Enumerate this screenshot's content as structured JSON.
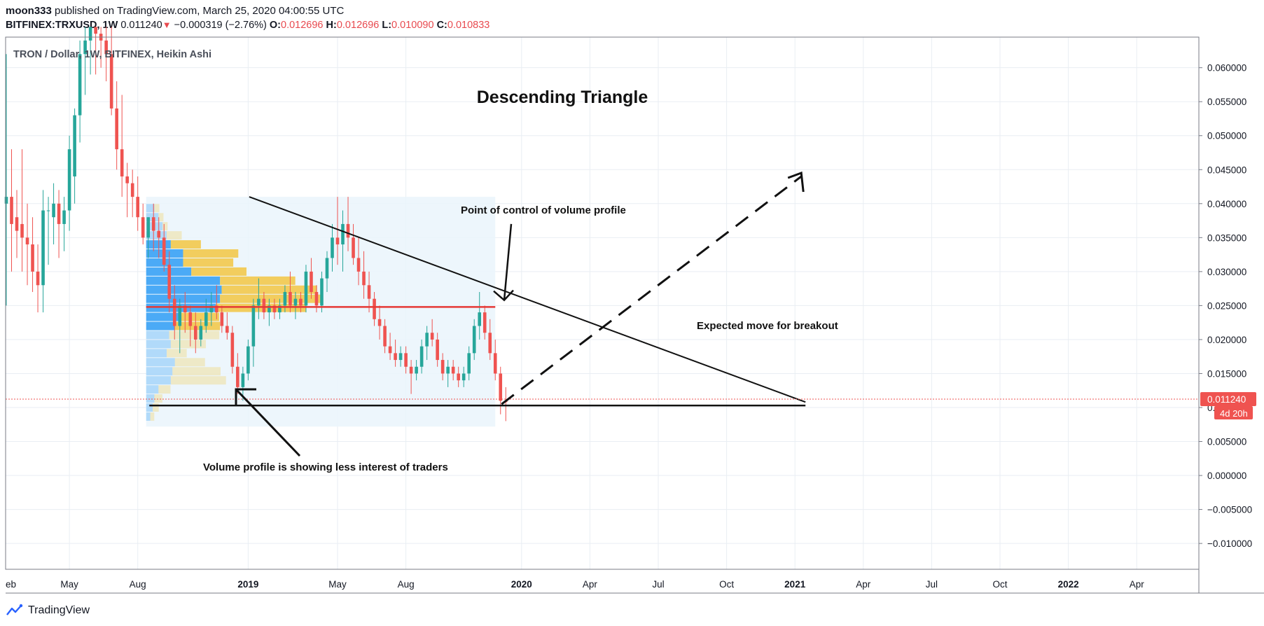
{
  "header": {
    "author": "moon333",
    "published": " published on TradingView.com, March 25, 2020 04:00:55 UTC",
    "symbol": "BITFINEX:TRXUSD, 1W",
    "last": "0.011240",
    "change": "−0.000319 (−2.76%)",
    "o_label": "O:",
    "o_value": "0.012696",
    "h_label": "H:",
    "h_value": "0.012696",
    "l_label": "L:",
    "l_value": "0.010090",
    "c_label": "C:",
    "c_value": "0.010833"
  },
  "branding": {
    "logo_text": "TradingView"
  },
  "colors": {
    "up": "#26a69a",
    "down": "#ef5350",
    "grid": "#e9eef3",
    "vp_up": "#42a5f5",
    "vp_down": "#f2c94c",
    "vp_area": "#eaf5fb",
    "poc": "#e53935",
    "price_line": "#ef5350"
  },
  "chart_data": {
    "type": "candlestick",
    "title": "TRON / Dollar, 1W, BITFINEX, Heikin Ashi",
    "annotations": {
      "headline": "Descending Triangle",
      "poc_label": "Point of control of volume profile",
      "breakout_label": "Expected move for breakout",
      "vp_label": "Volume profile is showing less interest of traders"
    },
    "y_ticks": [
      "0.060000",
      "0.055000",
      "0.050000",
      "0.045000",
      "0.040000",
      "0.035000",
      "0.030000",
      "0.025000",
      "0.020000",
      "0.015000",
      "0.010000",
      "0.005000",
      "0.000000",
      "−0.005000",
      "−0.010000"
    ],
    "y_values": [
      0.06,
      0.055,
      0.05,
      0.045,
      0.04,
      0.035,
      0.03,
      0.025,
      0.02,
      0.015,
      0.01,
      0.005,
      0,
      -0.005,
      -0.01
    ],
    "ylim": [
      -0.0138,
      0.0645
    ],
    "x_ticks": [
      {
        "label": "eb",
        "w": 0
      },
      {
        "label": "May",
        "w": 12
      },
      {
        "label": "Aug",
        "w": 25
      },
      {
        "label": "2019",
        "w": 46
      },
      {
        "label": "May",
        "w": 63
      },
      {
        "label": "Aug",
        "w": 76
      },
      {
        "label": "2020",
        "w": 98
      },
      {
        "label": "Apr",
        "w": 111
      },
      {
        "label": "Jul",
        "w": 124
      },
      {
        "label": "Oct",
        "w": 137
      },
      {
        "label": "2021",
        "w": 150
      },
      {
        "label": "Apr",
        "w": 163
      },
      {
        "label": "Jul",
        "w": 176
      },
      {
        "label": "Oct",
        "w": 189
      },
      {
        "label": "2022",
        "w": 202
      },
      {
        "label": "Apr",
        "w": 215
      }
    ],
    "last_price": "0.011240",
    "last_price_value": 0.01124,
    "countdown": "4d 20h",
    "candles": [
      [
        0.04,
        0.062,
        0.025,
        0.041
      ],
      [
        0.041,
        0.048,
        0.03,
        0.037
      ],
      [
        0.038,
        0.042,
        0.032,
        0.036
      ],
      [
        0.037,
        0.048,
        0.03,
        0.035
      ],
      [
        0.035,
        0.04,
        0.028,
        0.034
      ],
      [
        0.034,
        0.038,
        0.027,
        0.03
      ],
      [
        0.03,
        0.034,
        0.024,
        0.028
      ],
      [
        0.028,
        0.042,
        0.024,
        0.039
      ],
      [
        0.039,
        0.041,
        0.031,
        0.039
      ],
      [
        0.038,
        0.043,
        0.034,
        0.04
      ],
      [
        0.04,
        0.042,
        0.032,
        0.037
      ],
      [
        0.037,
        0.041,
        0.033,
        0.039
      ],
      [
        0.039,
        0.05,
        0.036,
        0.048
      ],
      [
        0.044,
        0.054,
        0.04,
        0.053
      ],
      [
        0.053,
        0.064,
        0.049,
        0.062
      ],
      [
        0.062,
        0.07,
        0.056,
        0.064
      ],
      [
        0.064,
        0.07,
        0.059,
        0.066
      ],
      [
        0.066,
        0.07,
        0.059,
        0.065
      ],
      [
        0.065,
        0.068,
        0.06,
        0.064
      ],
      [
        0.064,
        0.068,
        0.058,
        0.062
      ],
      [
        0.062,
        0.066,
        0.053,
        0.054
      ],
      [
        0.054,
        0.058,
        0.045,
        0.048
      ],
      [
        0.048,
        0.056,
        0.041,
        0.044
      ],
      [
        0.044,
        0.046,
        0.038,
        0.043
      ],
      [
        0.043,
        0.045,
        0.038,
        0.041
      ],
      [
        0.041,
        0.044,
        0.036,
        0.038
      ],
      [
        0.038,
        0.04,
        0.034,
        0.035
      ],
      [
        0.035,
        0.038,
        0.032,
        0.038
      ],
      [
        0.038,
        0.04,
        0.033,
        0.036
      ],
      [
        0.036,
        0.038,
        0.032,
        0.035
      ],
      [
        0.035,
        0.037,
        0.03,
        0.031
      ],
      [
        0.031,
        0.033,
        0.024,
        0.026
      ],
      [
        0.026,
        0.028,
        0.02,
        0.022
      ],
      [
        0.022,
        0.026,
        0.018,
        0.025
      ],
      [
        0.025,
        0.027,
        0.021,
        0.024
      ],
      [
        0.024,
        0.025,
        0.019,
        0.022
      ],
      [
        0.022,
        0.024,
        0.018,
        0.02
      ],
      [
        0.02,
        0.023,
        0.019,
        0.022
      ],
      [
        0.022,
        0.026,
        0.021,
        0.024
      ],
      [
        0.024,
        0.027,
        0.022,
        0.025
      ],
      [
        0.025,
        0.028,
        0.023,
        0.024
      ],
      [
        0.024,
        0.025,
        0.021,
        0.022
      ],
      [
        0.022,
        0.024,
        0.02,
        0.021
      ],
      [
        0.021,
        0.022,
        0.015,
        0.016
      ],
      [
        0.016,
        0.018,
        0.012,
        0.013
      ],
      [
        0.013,
        0.016,
        0.011,
        0.015
      ],
      [
        0.015,
        0.02,
        0.014,
        0.019
      ],
      [
        0.019,
        0.026,
        0.016,
        0.025
      ],
      [
        0.025,
        0.029,
        0.023,
        0.026
      ],
      [
        0.026,
        0.027,
        0.023,
        0.024
      ],
      [
        0.024,
        0.026,
        0.022,
        0.025
      ],
      [
        0.025,
        0.026,
        0.023,
        0.024
      ],
      [
        0.024,
        0.026,
        0.023,
        0.025
      ],
      [
        0.025,
        0.028,
        0.024,
        0.027
      ],
      [
        0.027,
        0.03,
        0.024,
        0.025
      ],
      [
        0.025,
        0.027,
        0.023,
        0.026
      ],
      [
        0.026,
        0.027,
        0.024,
        0.025
      ],
      [
        0.025,
        0.031,
        0.024,
        0.03
      ],
      [
        0.03,
        0.032,
        0.026,
        0.027
      ],
      [
        0.027,
        0.028,
        0.024,
        0.025
      ],
      [
        0.025,
        0.03,
        0.024,
        0.029
      ],
      [
        0.029,
        0.033,
        0.027,
        0.032
      ],
      [
        0.032,
        0.037,
        0.03,
        0.035
      ],
      [
        0.035,
        0.041,
        0.031,
        0.034
      ],
      [
        0.034,
        0.039,
        0.03,
        0.037
      ],
      [
        0.037,
        0.041,
        0.033,
        0.035
      ],
      [
        0.035,
        0.037,
        0.031,
        0.032
      ],
      [
        0.032,
        0.035,
        0.028,
        0.03
      ],
      [
        0.03,
        0.033,
        0.026,
        0.028
      ],
      [
        0.028,
        0.03,
        0.024,
        0.026
      ],
      [
        0.026,
        0.027,
        0.022,
        0.023
      ],
      [
        0.023,
        0.025,
        0.02,
        0.022
      ],
      [
        0.022,
        0.023,
        0.018,
        0.019
      ],
      [
        0.019,
        0.021,
        0.017,
        0.018
      ],
      [
        0.018,
        0.02,
        0.016,
        0.017
      ],
      [
        0.017,
        0.019,
        0.016,
        0.018
      ],
      [
        0.018,
        0.019,
        0.015,
        0.016
      ],
      [
        0.016,
        0.017,
        0.012,
        0.015
      ],
      [
        0.015,
        0.017,
        0.014,
        0.016
      ],
      [
        0.016,
        0.02,
        0.015,
        0.019
      ],
      [
        0.019,
        0.022,
        0.017,
        0.021
      ],
      [
        0.021,
        0.023,
        0.019,
        0.02
      ],
      [
        0.02,
        0.021,
        0.016,
        0.017
      ],
      [
        0.017,
        0.018,
        0.014,
        0.015
      ],
      [
        0.015,
        0.017,
        0.013,
        0.016
      ],
      [
        0.016,
        0.017,
        0.014,
        0.015
      ],
      [
        0.015,
        0.016,
        0.013,
        0.014
      ],
      [
        0.014,
        0.016,
        0.013,
        0.015
      ],
      [
        0.015,
        0.019,
        0.014,
        0.018
      ],
      [
        0.018,
        0.023,
        0.017,
        0.022
      ],
      [
        0.022,
        0.027,
        0.02,
        0.024
      ],
      [
        0.024,
        0.025,
        0.02,
        0.021
      ],
      [
        0.021,
        0.023,
        0.017,
        0.018
      ],
      [
        0.018,
        0.02,
        0.014,
        0.015
      ],
      [
        0.015,
        0.016,
        0.009,
        0.011
      ],
      [
        0.011,
        0.013,
        0.008,
        0.0108
      ]
    ],
    "volume_profile": {
      "price_low": 0.008,
      "price_high": 0.04,
      "rows": [
        [
          0.05,
          0.04
        ],
        [
          0.08,
          0.06
        ],
        [
          0.1,
          0.08
        ],
        [
          0.15,
          0.12
        ],
        [
          0.3,
          0.55
        ],
        [
          0.32,
          0.48
        ],
        [
          0.35,
          0.3
        ],
        [
          0.25,
          0.2
        ],
        [
          0.3,
          0.35
        ],
        [
          0.28,
          0.5
        ],
        [
          0.35,
          0.45
        ],
        [
          0.4,
          0.4
        ],
        [
          0.85,
          0.9
        ],
        [
          0.9,
          1.0
        ],
        [
          0.92,
          0.95
        ],
        [
          0.9,
          0.75
        ],
        [
          0.55,
          0.55
        ],
        [
          0.45,
          0.5
        ],
        [
          0.45,
          0.55
        ],
        [
          0.3,
          0.3
        ],
        [
          0.25,
          0.15
        ],
        [
          0.2,
          0.05
        ],
        [
          0.15,
          0.05
        ],
        [
          0.1,
          0.05
        ]
      ]
    },
    "triangle": {
      "upper_start": [
        46.2,
        0.041
      ],
      "upper_end": [
        152,
        0.0108
      ],
      "lower_start": [
        27.2,
        0.0103
      ],
      "lower_end": [
        152,
        0.0103
      ],
      "poc_price": 0.0248,
      "poc_w_start": 26.6,
      "poc_w_end": 93,
      "breakout_start": [
        94.2,
        0.0105
      ],
      "breakout_end": [
        151.2,
        0.044
      ]
    }
  }
}
